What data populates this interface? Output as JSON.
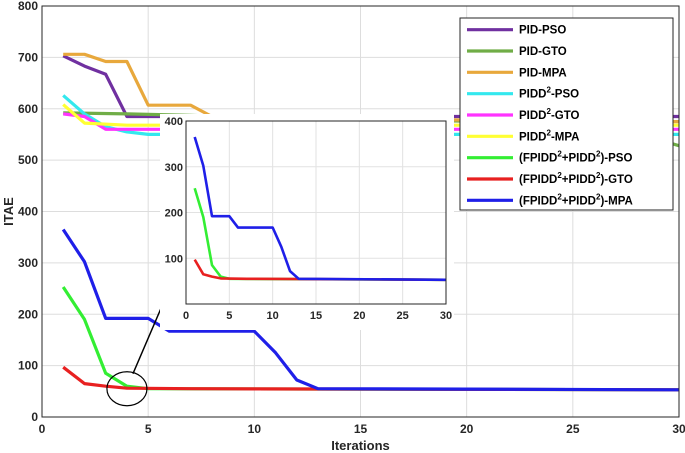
{
  "chart_data": {
    "type": "line",
    "xlabel": "Iterations",
    "ylabel": "ITAE",
    "xlim": [
      0,
      30
    ],
    "ylim": [
      0,
      800
    ],
    "xticks": [
      0,
      5,
      10,
      15,
      20,
      25,
      30
    ],
    "yticks": [
      0,
      100,
      200,
      300,
      400,
      500,
      600,
      700,
      800
    ],
    "grid": true,
    "legend_position": "top-right",
    "series": [
      {
        "name": "PID-PSO",
        "color": "#7030a0",
        "points": [
          [
            1,
            703
          ],
          [
            2,
            683
          ],
          [
            3,
            667
          ],
          [
            4,
            585
          ],
          [
            30,
            585
          ]
        ]
      },
      {
        "name": "PID-GTO",
        "color": "#70ad47",
        "points": [
          [
            1,
            592
          ],
          [
            4,
            590
          ],
          [
            7,
            587
          ],
          [
            12,
            580
          ],
          [
            22,
            575
          ],
          [
            29,
            540
          ],
          [
            30,
            528
          ]
        ]
      },
      {
        "name": "PID-MPA",
        "color": "#e8a83c",
        "points": [
          [
            1,
            706
          ],
          [
            2,
            706
          ],
          [
            3,
            692
          ],
          [
            4,
            692
          ],
          [
            5,
            607
          ],
          [
            7,
            607
          ],
          [
            8,
            585
          ],
          [
            25,
            575
          ],
          [
            30,
            575
          ]
        ]
      },
      {
        "name": "PIDD2-PSO",
        "color": "#33e8ee",
        "points": [
          [
            1,
            626
          ],
          [
            2,
            590
          ],
          [
            3,
            565
          ],
          [
            4,
            555
          ],
          [
            5,
            550
          ],
          [
            7,
            550
          ],
          [
            30,
            550
          ]
        ]
      },
      {
        "name": "PIDD2-GTO",
        "color": "#ff33ff",
        "points": [
          [
            1,
            590
          ],
          [
            2,
            585
          ],
          [
            3,
            560
          ],
          [
            6,
            560
          ],
          [
            30,
            560
          ]
        ]
      },
      {
        "name": "PIDD2-MPA",
        "color": "#ffff33",
        "points": [
          [
            1,
            608
          ],
          [
            2,
            572
          ],
          [
            4,
            568
          ],
          [
            8,
            568
          ],
          [
            30,
            568
          ]
        ]
      },
      {
        "name": "(FPIDD2+PIDD2)-PSO",
        "color": "#33ee33",
        "points": [
          [
            1,
            253
          ],
          [
            2,
            190
          ],
          [
            3,
            85
          ],
          [
            4,
            60
          ],
          [
            5,
            55
          ],
          [
            30,
            53
          ]
        ]
      },
      {
        "name": "(FPIDD2+PIDD2)-GTO",
        "color": "#e82020",
        "points": [
          [
            1,
            97
          ],
          [
            2,
            65
          ],
          [
            3,
            60
          ],
          [
            4,
            56
          ],
          [
            7,
            55
          ],
          [
            30,
            53
          ]
        ]
      },
      {
        "name": "(FPIDD2+PIDD2)-MPA",
        "color": "#1f1fe8",
        "points": [
          [
            1,
            365
          ],
          [
            2,
            302
          ],
          [
            3,
            192
          ],
          [
            5,
            192
          ],
          [
            6,
            167
          ],
          [
            10,
            167
          ],
          [
            11,
            125
          ],
          [
            12,
            72
          ],
          [
            13,
            55
          ],
          [
            30,
            53
          ]
        ]
      }
    ],
    "inset": {
      "xlim": [
        0,
        30
      ],
      "ylim": [
        0,
        400
      ],
      "xticks": [
        0,
        5,
        10,
        15,
        20,
        25,
        30
      ],
      "yticks": [
        100,
        200,
        300,
        400
      ],
      "series": [
        "(FPIDD2+PIDD2)-PSO",
        "(FPIDD2+PIDD2)-GTO",
        "(FPIDD2+PIDD2)-MPA"
      ]
    },
    "legend": [
      {
        "base": "PID-PSO",
        "sup1": "",
        "mid": "",
        "sup2": "",
        "tail": ""
      },
      {
        "base": "PID-GTO",
        "sup1": "",
        "mid": "",
        "sup2": "",
        "tail": ""
      },
      {
        "base": "PID-MPA",
        "sup1": "",
        "mid": "",
        "sup2": "",
        "tail": ""
      },
      {
        "base": "PIDD",
        "sup1": "2",
        "mid": "-PSO",
        "sup2": "",
        "tail": ""
      },
      {
        "base": "PIDD",
        "sup1": "2",
        "mid": "-GTO",
        "sup2": "",
        "tail": ""
      },
      {
        "base": "PIDD",
        "sup1": "2",
        "mid": "-MPA",
        "sup2": "",
        "tail": ""
      },
      {
        "base": "(FPIDD",
        "sup1": "2",
        "mid": "+PIDD",
        "sup2": "2",
        "tail": ")-PSO"
      },
      {
        "base": "(FPIDD",
        "sup1": "2",
        "mid": "+PIDD",
        "sup2": "2",
        "tail": ")-GTO"
      },
      {
        "base": "(FPIDD",
        "sup1": "2",
        "mid": "+PIDD",
        "sup2": "2",
        "tail": ")-MPA"
      }
    ]
  }
}
